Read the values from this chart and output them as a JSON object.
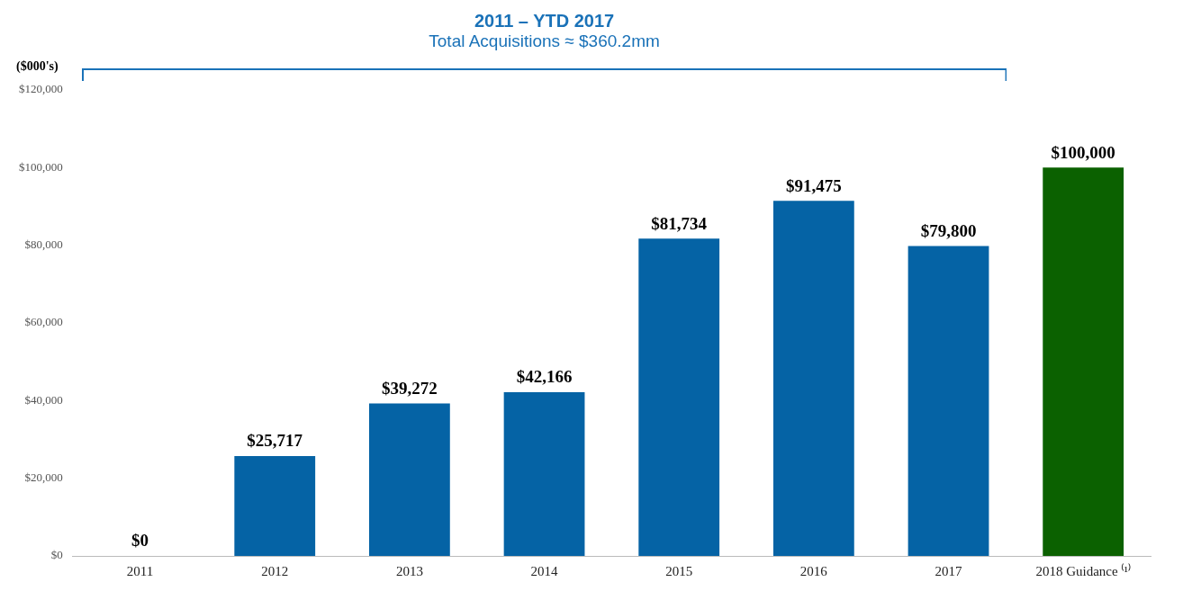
{
  "chart_data": {
    "type": "bar",
    "title": "2011 – YTD 2017",
    "subtitle": "Total Acquisitions ≈ $360.2mm",
    "ylabel": "($000's)",
    "categories": [
      "2011",
      "2012",
      "2013",
      "2014",
      "2015",
      "2016",
      "2017",
      "2018 Guidance ⁽¹⁾"
    ],
    "values": [
      0,
      25717,
      39272,
      42166,
      81734,
      91475,
      79800,
      100000
    ],
    "colors": [
      "#0563a5",
      "#0563a5",
      "#0563a5",
      "#0563a5",
      "#0563a5",
      "#0563a5",
      "#0563a5",
      "#0b6100"
    ],
    "value_labels": [
      "$0",
      "$25,717",
      "$39,272",
      "$42,166",
      "$81,734",
      "$91,475",
      "$79,800",
      "$100,000"
    ],
    "ylim": [
      0,
      120000
    ],
    "yticks": [
      {
        "value": 0,
        "label": "$0"
      },
      {
        "value": 20000,
        "label": "$20,000"
      },
      {
        "value": 40000,
        "label": "$40,000"
      },
      {
        "value": 60000,
        "label": "$60,000"
      },
      {
        "value": 80000,
        "label": "$80,000"
      },
      {
        "value": 100000,
        "label": "$100,000"
      },
      {
        "value": 120000,
        "label": "$120,000"
      }
    ],
    "grid": false,
    "legend": false
  }
}
